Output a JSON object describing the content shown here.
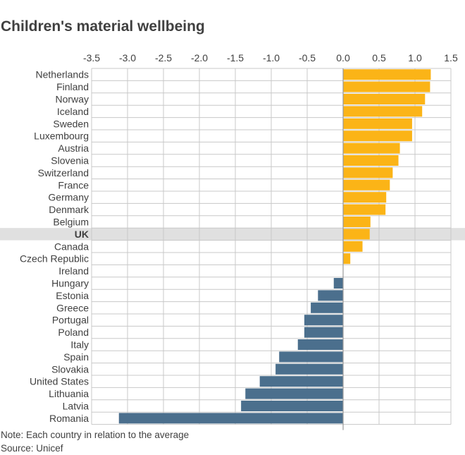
{
  "chart_data": {
    "type": "bar",
    "orientation": "horizontal",
    "title": "Children's material wellbeing",
    "xlabel": "",
    "ylabel": "",
    "xlim": [
      -3.5,
      1.5
    ],
    "xticks": [
      "-3.5",
      "-3.0",
      "-2.5",
      "-2.0",
      "-1.5",
      "-1.0",
      "-0.5",
      "0.0",
      "0.5",
      "1.0",
      "1.5"
    ],
    "tick_values": [
      -3.5,
      -3.0,
      -2.5,
      -2.0,
      -1.5,
      -1.0,
      -0.5,
      0.0,
      0.5,
      1.0,
      1.5
    ],
    "grid": true,
    "highlight": "UK",
    "categories": [
      "Netherlands",
      "Finland",
      "Norway",
      "Iceland",
      "Sweden",
      "Luxembourg",
      "Austria",
      "Slovenia",
      "Switzerland",
      "France",
      "Germany",
      "Denmark",
      "Belgium",
      "UK",
      "Canada",
      "Czech Republic",
      "Ireland",
      "Hungary",
      "Estonia",
      "Greece",
      "Portugal",
      "Poland",
      "Italy",
      "Spain",
      "Slovakia",
      "United States",
      "Lithuania",
      "Latvia",
      "Romania"
    ],
    "values": [
      1.22,
      1.21,
      1.14,
      1.1,
      0.96,
      0.96,
      0.79,
      0.77,
      0.69,
      0.65,
      0.6,
      0.59,
      0.38,
      0.37,
      0.27,
      0.1,
      0.0,
      -0.13,
      -0.35,
      -0.45,
      -0.54,
      -0.54,
      -0.63,
      -0.89,
      -0.94,
      -1.16,
      -1.36,
      -1.42,
      -3.12
    ],
    "colors": {
      "positive": "#fbb417",
      "negative": "#4b6f8d",
      "highlight_band": "#e0e0e0",
      "grid": "#c8c8c8",
      "axis": "#999999"
    }
  },
  "footer": {
    "note": "Note: Each country in relation to the average",
    "source": "Source: Unicef"
  }
}
